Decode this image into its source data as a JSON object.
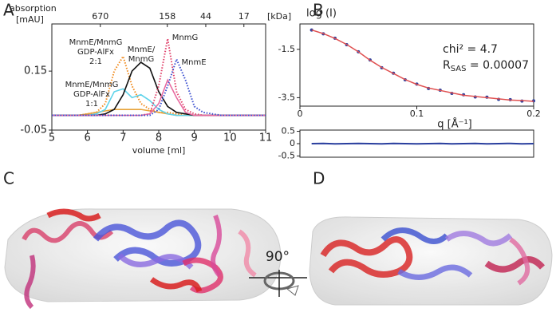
{
  "panels": {
    "a": "A",
    "b": "B",
    "c": "C",
    "d": "D"
  },
  "rotation_label": "90°",
  "chart_data": [
    {
      "type": "line",
      "y_label": [
        "absorption",
        "[mAU]"
      ],
      "x_label": "volume [ml]",
      "x2_label": "[kDa]",
      "x": [
        5,
        5.25,
        5.5,
        5.75,
        6,
        6.25,
        6.5,
        6.75,
        7,
        7.25,
        7.5,
        7.75,
        8,
        8.25,
        8.5,
        8.75,
        9,
        9.25,
        9.5,
        9.75,
        10,
        10.25,
        10.5,
        10.75,
        11
      ],
      "xlim": [
        5,
        11
      ],
      "xticks": [
        5,
        6,
        7,
        8,
        9,
        10,
        11
      ],
      "ylim": [
        -0.05,
        0.31
      ],
      "yticks": [
        -0.05,
        0.15
      ],
      "x2ticks": [
        {
          "value": 6.36,
          "label": "670"
        },
        {
          "value": 8.24,
          "label": "158"
        },
        {
          "value": 9.32,
          "label": "44"
        },
        {
          "value": 10.39,
          "label": "17"
        }
      ],
      "series": [
        {
          "color": "#f08a1c",
          "dash": true,
          "values": [
            0,
            0,
            0,
            0,
            0.005,
            0.01,
            0.04,
            0.15,
            0.2,
            0.1,
            0.04,
            0.02,
            0.01,
            0.01,
            0.005,
            0,
            0,
            0,
            0,
            0,
            0,
            0,
            0,
            0,
            0
          ]
        },
        {
          "color": "#e8a33a",
          "dash": false,
          "values": [
            0,
            0,
            0,
            0,
            0.005,
            0.01,
            0.015,
            0.02,
            0.02,
            0.02,
            0.02,
            0.015,
            0.01,
            0.005,
            0,
            0,
            0,
            0,
            0,
            0,
            0,
            0,
            0,
            0,
            0
          ]
        },
        {
          "color": "#5fd3ea",
          "dash": false,
          "values": [
            0,
            0,
            0,
            0,
            0,
            0.005,
            0.02,
            0.08,
            0.09,
            0.06,
            0.07,
            0.05,
            0.02,
            0.005,
            0,
            0,
            0,
            0,
            0,
            0,
            0,
            0,
            0,
            0,
            0
          ]
        },
        {
          "color": "#111111",
          "dash": false,
          "values": [
            0,
            0,
            0,
            0,
            0,
            0,
            0.005,
            0.02,
            0.07,
            0.15,
            0.18,
            0.16,
            0.08,
            0.03,
            0.01,
            0.005,
            0,
            0,
            0,
            0,
            0,
            0,
            0,
            0,
            0
          ]
        },
        {
          "color": "#e0406a",
          "dash": true,
          "values": [
            0,
            0,
            0,
            0,
            0,
            0,
            0,
            0,
            0,
            0,
            0,
            0.005,
            0.1,
            0.26,
            0.08,
            0.02,
            0.005,
            0,
            0,
            0,
            0,
            0,
            0,
            0,
            0
          ]
        },
        {
          "color": "#e86aa0",
          "dash": false,
          "values": [
            0,
            0,
            0,
            0,
            0,
            0,
            0,
            0,
            0,
            0,
            0,
            0.005,
            0.04,
            0.12,
            0.06,
            0.01,
            0,
            0,
            0,
            0,
            0,
            0,
            0,
            0,
            0
          ]
        },
        {
          "color": "#3a4fd0",
          "dash": true,
          "values": [
            0,
            0,
            0,
            0,
            0,
            0,
            0,
            0,
            0,
            0,
            0,
            0,
            0.02,
            0.1,
            0.19,
            0.12,
            0.03,
            0.01,
            0.005,
            0,
            0,
            0,
            0,
            0,
            0
          ]
        }
      ],
      "annotations": [
        [
          "MnmE/MnmG",
          "GDP-AlFx",
          "2:1"
        ],
        [
          "MnmE/MnmG",
          "GDP-AlFx",
          "1:1"
        ],
        [
          "MnmE/",
          "MnmG"
        ],
        [
          "MnmG"
        ],
        [
          "MnmE"
        ]
      ]
    },
    {
      "type": "scatter_fit",
      "y_label": "log (I)",
      "x_label": "q [Å⁻¹]",
      "chi2": "chi² = 4.7",
      "rsas": {
        "main": "R",
        "sub": "SAS",
        "rest": " = 0.00007"
      },
      "x": [
        0.01,
        0.02,
        0.03,
        0.04,
        0.05,
        0.06,
        0.07,
        0.08,
        0.09,
        0.1,
        0.11,
        0.12,
        0.13,
        0.14,
        0.15,
        0.16,
        0.17,
        0.18,
        0.19,
        0.2
      ],
      "xlim": [
        0,
        0.2
      ],
      "xticks": [
        0,
        0.1,
        0.2
      ],
      "ylim": [
        -3.85,
        -0.45
      ],
      "yticks": [
        -1.5,
        -3.5
      ],
      "series": [
        {
          "color": "#2a3f9e",
          "style": "dots",
          "values": [
            -0.7,
            -0.86,
            -1.04,
            -1.31,
            -1.6,
            -1.94,
            -2.26,
            -2.49,
            -2.76,
            -2.94,
            -3.12,
            -3.19,
            -3.32,
            -3.38,
            -3.47,
            -3.48,
            -3.57,
            -3.58,
            -3.64,
            -3.63
          ]
        },
        {
          "color": "#e05050",
          "style": "line",
          "values": [
            -0.7,
            -0.85,
            -1.05,
            -1.3,
            -1.6,
            -1.95,
            -2.25,
            -2.5,
            -2.75,
            -2.95,
            -3.1,
            -3.2,
            -3.3,
            -3.4,
            -3.45,
            -3.5,
            -3.55,
            -3.6,
            -3.62,
            -3.65
          ]
        }
      ]
    },
    {
      "type": "residual",
      "x": [
        0.01,
        0.02,
        0.03,
        0.04,
        0.05,
        0.06,
        0.07,
        0.08,
        0.09,
        0.1,
        0.11,
        0.12,
        0.13,
        0.14,
        0.15,
        0.16,
        0.17,
        0.18,
        0.19,
        0.2
      ],
      "xlim": [
        0,
        0.2
      ],
      "ylim": [
        -0.55,
        0.55
      ],
      "yticks": [
        0.5,
        0,
        -0.5
      ],
      "series": [
        {
          "color": "#2a3f9e",
          "values": [
            0,
            0.01,
            -0.01,
            0,
            0.01,
            0,
            -0.01,
            0.01,
            0,
            -0.01,
            0,
            0.01,
            -0.01,
            0,
            0.01,
            -0.01,
            0,
            0.01,
            -0.01,
            0
          ]
        }
      ]
    }
  ]
}
